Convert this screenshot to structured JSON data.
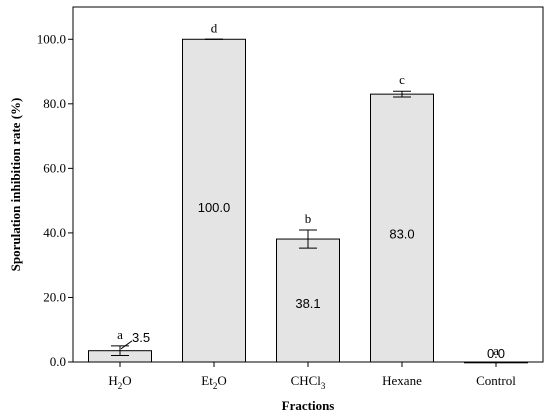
{
  "chart_data": {
    "type": "bar",
    "xlabel": "Fractions",
    "ylabel": "Sporulation inhibition rate (%)",
    "ylim": [
      0,
      110
    ],
    "yticks": [
      0,
      20,
      40,
      60,
      80,
      100
    ],
    "ytick_labels": [
      "0.0",
      "20.0",
      "40.0",
      "60.0",
      "80.0",
      "100.0"
    ],
    "categories": [
      {
        "base": "H",
        "sub": "2",
        "rest": "O"
      },
      {
        "base": "Et",
        "sub": "2",
        "rest": "O"
      },
      {
        "base": "CHCl",
        "sub": "3",
        "rest": ""
      },
      {
        "base": "Hexane",
        "sub": "",
        "rest": ""
      },
      {
        "base": "Control",
        "sub": "",
        "rest": ""
      }
    ],
    "values": [
      3.5,
      100.0,
      38.1,
      83.0,
      0.0
    ],
    "value_labels": [
      "3.5",
      "100.0",
      "38.1",
      "83.0",
      "0.0"
    ],
    "errors": [
      1.5,
      0.0,
      2.8,
      0.9,
      0.0
    ],
    "significance_letters": [
      "a",
      "d",
      "b",
      "c",
      "a"
    ],
    "bar_color": "#e4e4e4",
    "bar_edge_color": "#000000",
    "grid": false
  }
}
